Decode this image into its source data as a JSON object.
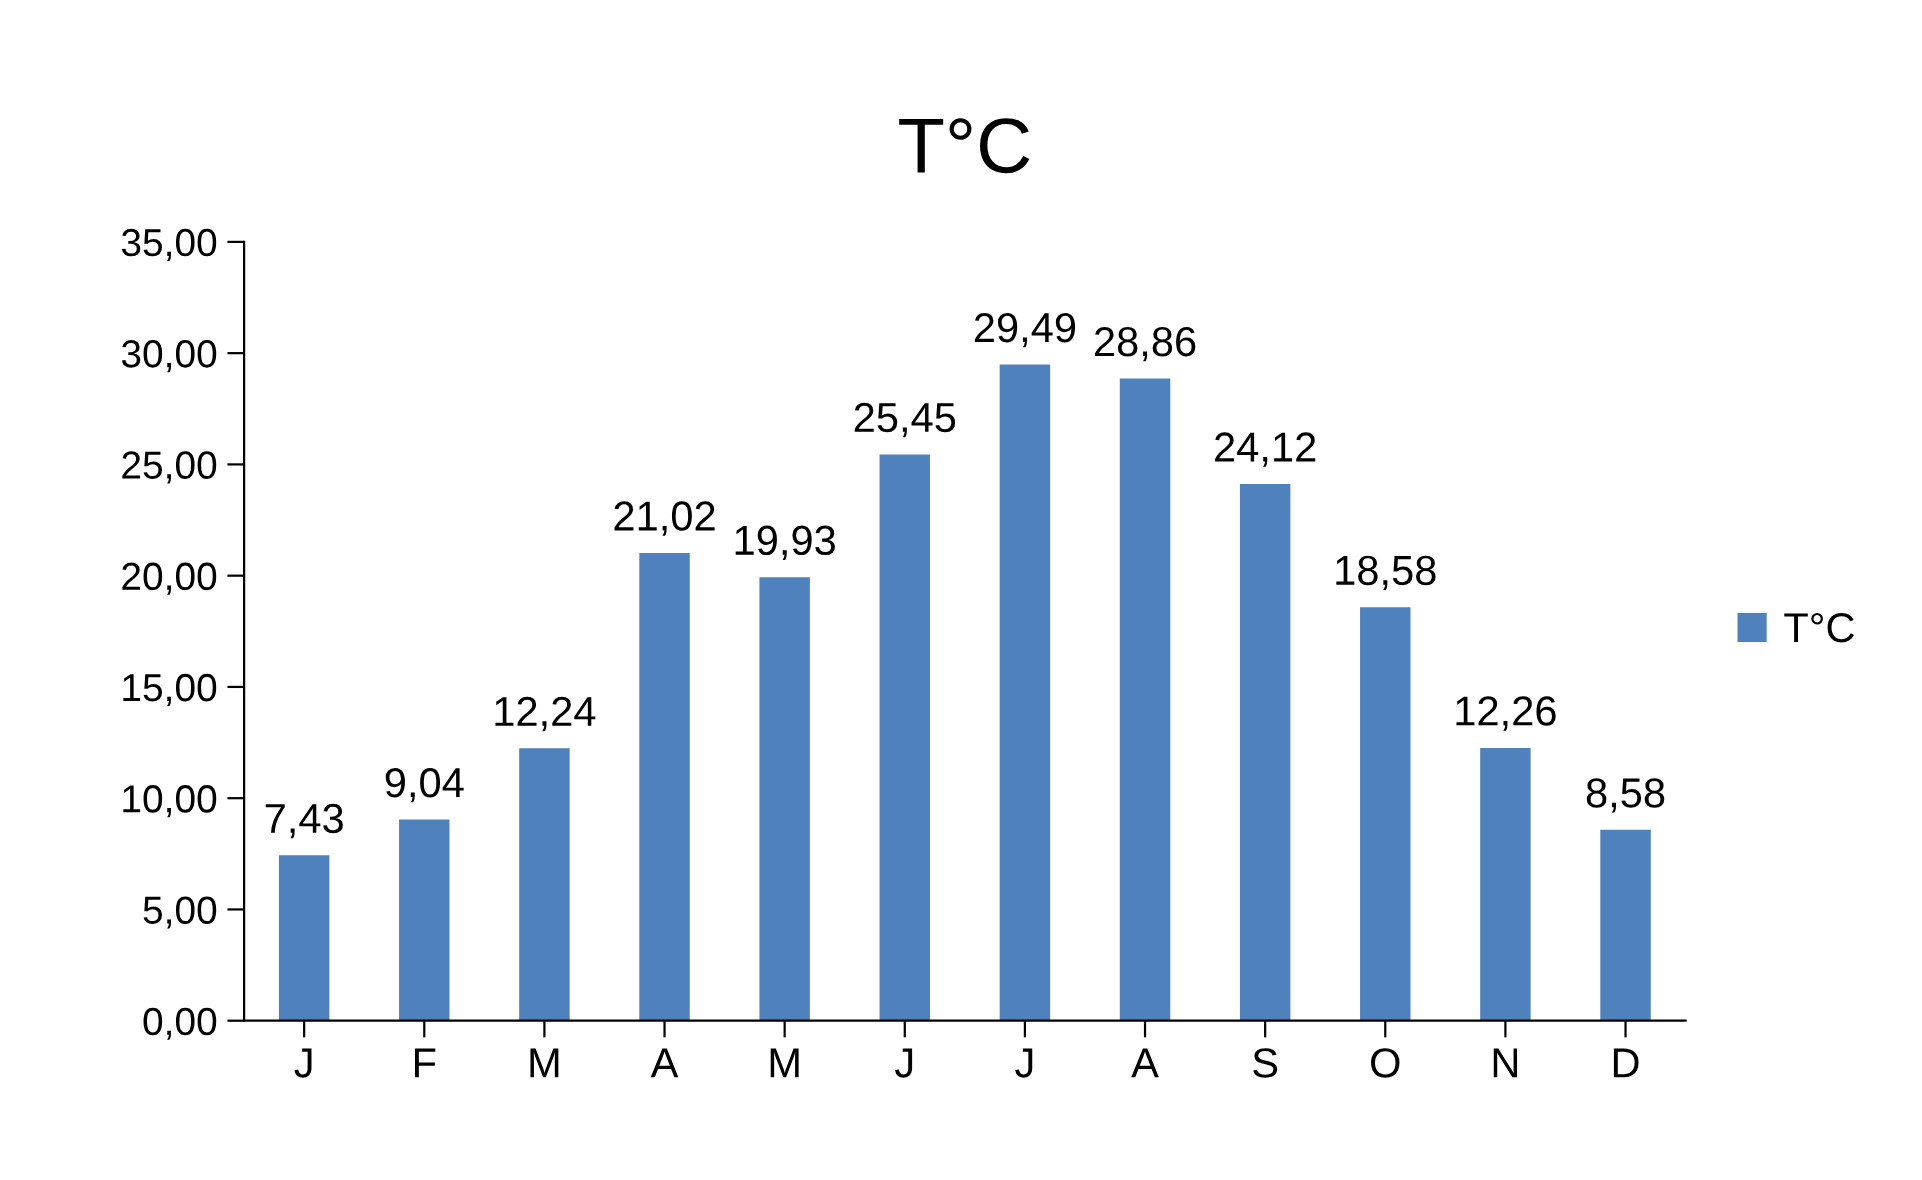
{
  "chart_data": {
    "type": "bar",
    "title": "T°C",
    "categories": [
      "J",
      "F",
      "M",
      "A",
      "M",
      "J",
      "J",
      "A",
      "S",
      "O",
      "N",
      "D"
    ],
    "series": [
      {
        "name": "T°C",
        "color": "#4f81bd",
        "values": [
          7.43,
          9.04,
          12.24,
          21.02,
          19.93,
          25.45,
          29.49,
          28.86,
          24.12,
          18.58,
          12.26,
          8.58
        ],
        "value_labels": [
          "7,43",
          "9,04",
          "12,24",
          "21,02",
          "19,93",
          "25,45",
          "29,49",
          "28,86",
          "24,12",
          "18,58",
          "12,26",
          "8,58"
        ]
      }
    ],
    "ylim": [
      0,
      35
    ],
    "yticks": [
      {
        "value": 0,
        "label": "0,00"
      },
      {
        "value": 5,
        "label": "5,00"
      },
      {
        "value": 10,
        "label": "10,00"
      },
      {
        "value": 15,
        "label": "15,00"
      },
      {
        "value": 20,
        "label": "20,00"
      },
      {
        "value": 25,
        "label": "25,00"
      },
      {
        "value": 30,
        "label": "30,00"
      },
      {
        "value": 35,
        "label": "35,00"
      }
    ],
    "grid": false,
    "legend": "right"
  }
}
